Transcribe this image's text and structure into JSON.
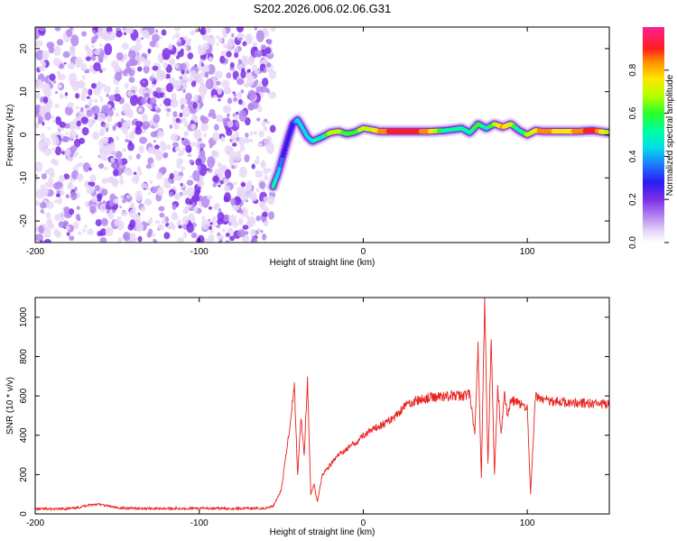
{
  "figure_title": "S202.2026.006.02.06.G31",
  "colorbar_label": "Normalized spectral amplitude",
  "colorbar_ticks": [
    "0.0",
    "0.2",
    "0.4",
    "0.6",
    "0.8"
  ],
  "colors": {
    "snr_line": "#e8231f",
    "noise_cloud": "#7d2ee6",
    "axes": "#000000"
  },
  "chart_data": [
    {
      "type": "heatmap",
      "title": "S202.2026.006.02.06.G31",
      "xlabel": "Height of straight line (km)",
      "ylabel": "Frequency (Hz)",
      "xlim": [
        -200,
        150
      ],
      "ylim": [
        -25,
        25
      ],
      "x_ticks": [
        -200,
        -100,
        0,
        100
      ],
      "x_tick_labels": [
        "-200",
        "-100",
        "0",
        "100"
      ],
      "y_ticks": [
        -20,
        -10,
        0,
        10,
        20
      ],
      "y_tick_labels": [
        "-20",
        "-10",
        "0",
        "10",
        "20"
      ],
      "colorbar_range": [
        0,
        1
      ],
      "noise_region_x": [
        -200,
        -55
      ],
      "ridge": {
        "x": [
          -55,
          -52,
          -49,
          -46,
          -43,
          -40,
          -37,
          -34,
          -31,
          -28,
          -25,
          -20,
          -15,
          -10,
          -5,
          0,
          5,
          10,
          20,
          30,
          40,
          50,
          60,
          65,
          70,
          75,
          80,
          85,
          90,
          95,
          100,
          105,
          110,
          120,
          130,
          140,
          150
        ],
        "freq": [
          -12,
          -9,
          -5,
          -1,
          2.5,
          3.5,
          1.5,
          -0.5,
          -1.5,
          -1,
          -0.5,
          0.5,
          0.8,
          0.2,
          0.6,
          1.5,
          1.2,
          0.8,
          0.8,
          0.8,
          0.8,
          1.0,
          1.5,
          0.5,
          2.5,
          1.5,
          2.5,
          1.8,
          2.5,
          1.0,
          0.0,
          1.0,
          0.8,
          0.8,
          0.8,
          1.0,
          0.5
        ],
        "amplitude": [
          0.55,
          0.5,
          0.35,
          0.3,
          0.3,
          0.5,
          0.45,
          0.45,
          0.5,
          0.55,
          0.5,
          0.75,
          0.7,
          0.65,
          0.6,
          0.75,
          0.75,
          0.85,
          0.95,
          0.95,
          0.85,
          0.55,
          0.6,
          0.55,
          0.65,
          0.5,
          0.7,
          0.85,
          0.75,
          0.5,
          0.7,
          0.8,
          0.9,
          0.8,
          0.85,
          0.95,
          0.7
        ]
      }
    },
    {
      "type": "line",
      "xlabel": "Height of straight line (km)",
      "ylabel": "SNR (10 * v/v)",
      "xlim": [
        -200,
        150
      ],
      "ylim": [
        0,
        1100
      ],
      "x_ticks": [
        -200,
        -100,
        0,
        100
      ],
      "x_tick_labels": [
        "-200",
        "-100",
        "0",
        "100"
      ],
      "y_ticks": [
        0,
        200,
        400,
        600,
        800,
        1000
      ],
      "y_tick_labels": [
        "0",
        "200",
        "400",
        "600",
        "800",
        "1000"
      ],
      "series": [
        {
          "name": "SNR",
          "x": [
            -200,
            -185,
            -175,
            -168,
            -162,
            -155,
            -150,
            -130,
            -100,
            -80,
            -60,
            -55,
            -50,
            -45,
            -42,
            -40,
            -38,
            -36,
            -34,
            -32,
            -30,
            -28,
            -25,
            -20,
            -15,
            -10,
            -5,
            0,
            5,
            10,
            15,
            20,
            25,
            30,
            40,
            50,
            60,
            65,
            68,
            70,
            72,
            74,
            76,
            78,
            80,
            82,
            84,
            86,
            88,
            90,
            95,
            100,
            102,
            105,
            110,
            120,
            130,
            140,
            150
          ],
          "value": [
            25,
            25,
            30,
            45,
            50,
            40,
            30,
            28,
            28,
            28,
            28,
            40,
            120,
            430,
            650,
            200,
            500,
            300,
            680,
            100,
            150,
            60,
            200,
            250,
            300,
            330,
            360,
            400,
            420,
            450,
            470,
            500,
            550,
            570,
            590,
            600,
            600,
            610,
            400,
            850,
            180,
            1080,
            250,
            880,
            200,
            650,
            400,
            620,
            500,
            580,
            560,
            540,
            100,
            600,
            580,
            570,
            565,
            560,
            555
          ]
        }
      ]
    }
  ]
}
